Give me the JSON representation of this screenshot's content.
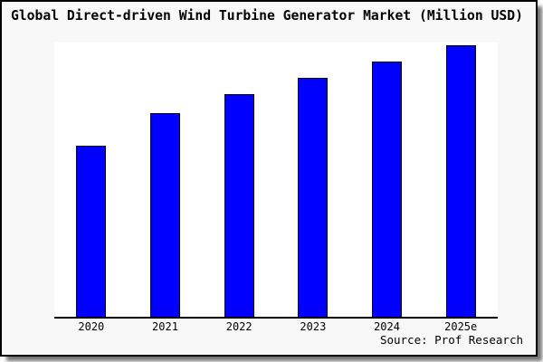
{
  "frame": {
    "background_color": "#f8f8f8",
    "border_color": "#000000",
    "shadow_color": "#8c8c8c"
  },
  "source": "Source: Prof Research",
  "chart_data": {
    "type": "bar",
    "title": "Global Direct-driven Wind Turbine Generator Market (Million USD)",
    "categories": [
      "2020",
      "2021",
      "2022",
      "2023",
      "2024",
      "2025e"
    ],
    "values": [
      63,
      75,
      82,
      88,
      94,
      100
    ],
    "value_note": "no y-axis ticks or data labels shown; values estimated from bar heights, normalized to 2025e = 100",
    "xlabel": "",
    "ylabel": "",
    "ylim": [
      0,
      101
    ],
    "grid": false,
    "legend_position": "none",
    "bar_color": "#0000ff",
    "bar_border_color": "#000000",
    "plot_background": "#ffffff",
    "axis_line_color": "#000000"
  }
}
